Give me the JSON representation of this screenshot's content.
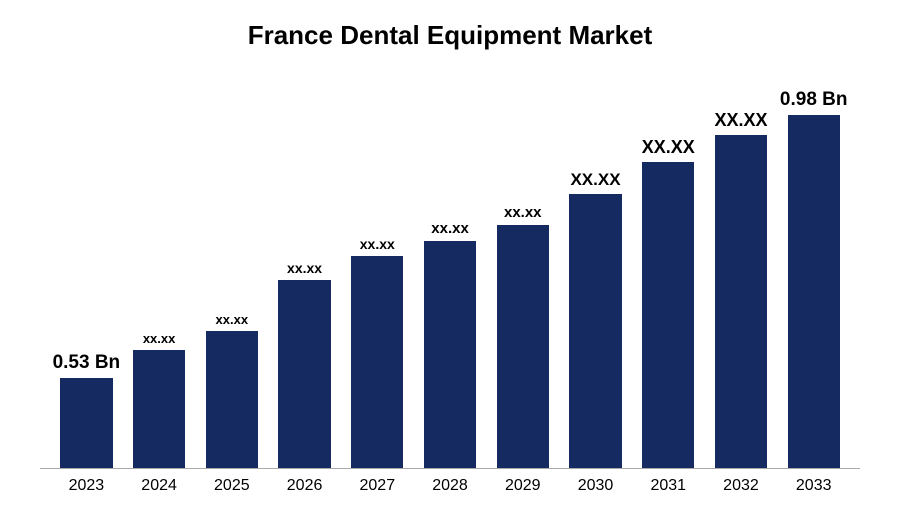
{
  "chart": {
    "type": "bar",
    "title": "France Dental Equipment Market",
    "title_fontsize": 26,
    "title_color": "#000000",
    "background_color": "#ffffff",
    "axis_line_color": "#aaaaaa",
    "bar_color": "#152a60",
    "bar_width_ratio": 0.72,
    "ylim_max": 1.05,
    "xlabel_fontsize": 16,
    "xlabel_color": "#000000",
    "categories": [
      "2023",
      "2024",
      "2025",
      "2026",
      "2027",
      "2028",
      "2029",
      "2030",
      "2031",
      "2032",
      "2033"
    ],
    "bars": [
      {
        "label": "0.53 Bn",
        "label_fontsize": 19,
        "height_pct": 23
      },
      {
        "label": "xx.xx",
        "label_fontsize": 13,
        "height_pct": 30
      },
      {
        "label": "xx.xx",
        "label_fontsize": 13,
        "height_pct": 35
      },
      {
        "label": "xx.xx",
        "label_fontsize": 14,
        "height_pct": 48
      },
      {
        "label": "xx.xx",
        "label_fontsize": 14,
        "height_pct": 54
      },
      {
        "label": "xx.xx",
        "label_fontsize": 15,
        "height_pct": 58
      },
      {
        "label": "xx.xx",
        "label_fontsize": 15,
        "height_pct": 62
      },
      {
        "label": "XX.XX",
        "label_fontsize": 17,
        "height_pct": 70
      },
      {
        "label": "XX.XX",
        "label_fontsize": 18,
        "height_pct": 78
      },
      {
        "label": "XX.XX",
        "label_fontsize": 18,
        "height_pct": 85
      },
      {
        "label": "0.98 Bn",
        "label_fontsize": 19,
        "height_pct": 90
      }
    ]
  }
}
